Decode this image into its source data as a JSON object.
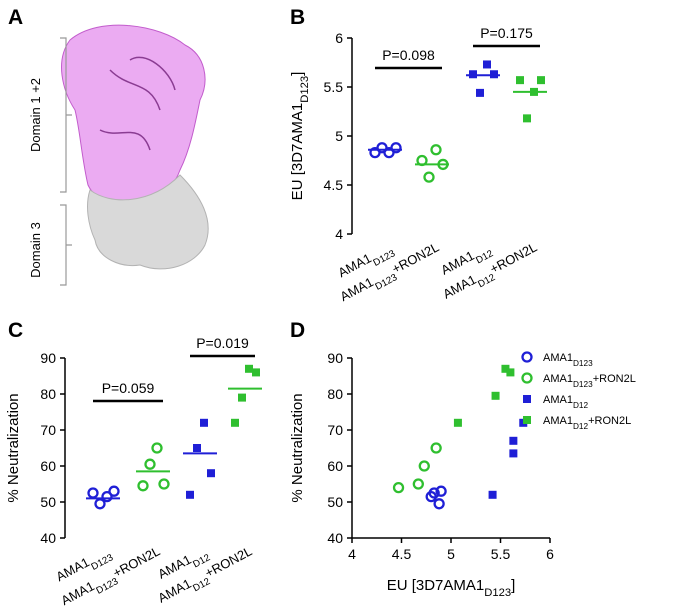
{
  "structure": {
    "label": "A",
    "domains": [
      "Domain 1 +2",
      "Domain 3"
    ]
  },
  "chart_data": [
    {
      "type": "dot",
      "label": "B",
      "ylabel": "EU [3D7AMA1D123]",
      "categories": [
        "AMA1D123",
        "AMA1D123+RON2L",
        "AMA1D12",
        "AMA1D12+RON2L"
      ],
      "groups": [
        {
          "color": "#1f1fd6",
          "marker": "circle",
          "values": [
            4.83,
            4.88,
            4.83,
            4.88
          ],
          "median": 4.86
        },
        {
          "color": "#2fbf2f",
          "marker": "circle",
          "values": [
            4.75,
            4.58,
            4.86,
            4.71
          ],
          "median": 4.71
        },
        {
          "color": "#1f1fd6",
          "marker": "square",
          "values": [
            5.63,
            5.44,
            5.73,
            5.63
          ],
          "median": 5.62
        },
        {
          "color": "#2fbf2f",
          "marker": "square",
          "values": [
            5.57,
            5.18,
            5.45,
            5.57
          ],
          "median": 5.45
        }
      ],
      "annotations": [
        "P=0.098",
        "P=0.175"
      ],
      "ylim": [
        4,
        6
      ],
      "yticks": [
        4,
        4.5,
        5,
        5.5,
        6
      ]
    },
    {
      "type": "dot",
      "label": "C",
      "ylabel": "% Neutralization",
      "categories": [
        "AMA1D123",
        "AMA1D123+RON2L",
        "AMA1D12",
        "AMA1D12+RON2L"
      ],
      "groups": [
        {
          "color": "#1f1fd6",
          "marker": "circle",
          "values": [
            52.5,
            49.5,
            51.5,
            53
          ],
          "median": 51
        },
        {
          "color": "#2fbf2f",
          "marker": "circle",
          "values": [
            54.5,
            60.5,
            65,
            55
          ],
          "median": 58.5
        },
        {
          "color": "#1f1fd6",
          "marker": "square",
          "values": [
            52,
            65,
            72,
            58
          ],
          "median": 63.5
        },
        {
          "color": "#2fbf2f",
          "marker": "square",
          "values": [
            72,
            79,
            87,
            86
          ],
          "median": 81.5
        }
      ],
      "annotations": [
        "P=0.059",
        "P=0.019"
      ],
      "ylim": [
        40,
        90
      ],
      "yticks": [
        40,
        50,
        60,
        70,
        80,
        90
      ]
    },
    {
      "type": "scatter",
      "label": "D",
      "xlabel": "EU [3D7AMA1D123]",
      "ylabel": "% Neutralization",
      "series": [
        {
          "name": "AMA1D123",
          "color": "#1f1fd6",
          "marker": "circle",
          "x": [
            4.8,
            4.83,
            4.88,
            4.9
          ],
          "values": [
            51.5,
            52.5,
            49.5,
            53
          ]
        },
        {
          "name": "AMA1D123+RON2L",
          "color": "#2fbf2f",
          "marker": "circle",
          "x": [
            4.47,
            4.67,
            4.73,
            4.85
          ],
          "values": [
            54,
            55,
            60,
            65
          ]
        },
        {
          "name": "AMA1D12",
          "color": "#1f1fd6",
          "marker": "square",
          "x": [
            5.42,
            5.63,
            5.63,
            5.73
          ],
          "values": [
            52,
            63.5,
            67,
            72
          ]
        },
        {
          "name": "AMA1D12+RON2L",
          "color": "#2fbf2f",
          "marker": "square",
          "x": [
            5.07,
            5.45,
            5.55,
            5.6
          ],
          "values": [
            72,
            79.5,
            87,
            86
          ]
        }
      ],
      "xlim": [
        4,
        6
      ],
      "xticks": [
        4,
        4.5,
        5,
        5.5,
        6
      ],
      "ylim": [
        40,
        90
      ],
      "yticks": [
        40,
        50,
        60,
        70,
        80,
        90
      ]
    }
  ]
}
